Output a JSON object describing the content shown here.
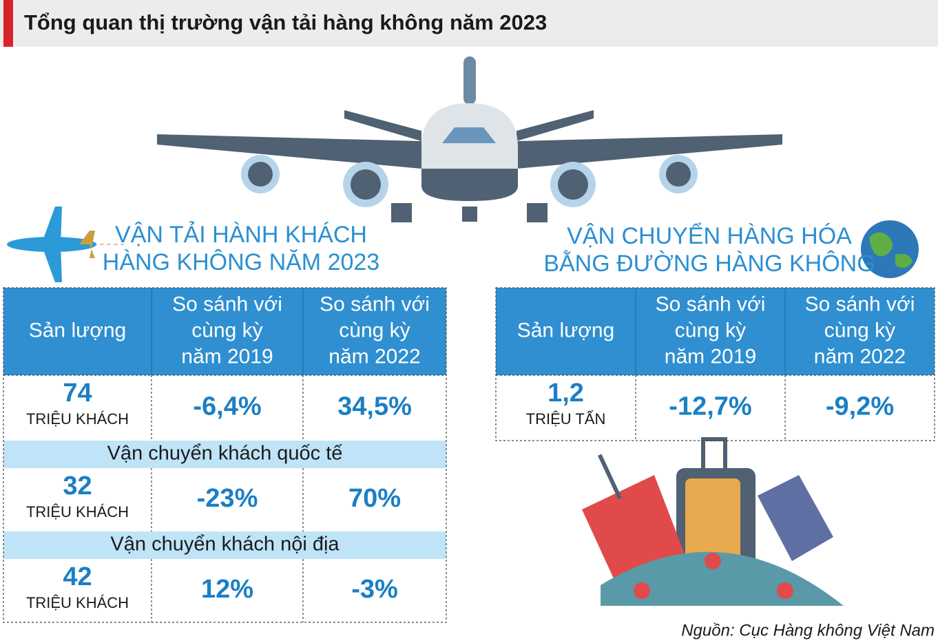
{
  "header": {
    "title": "Tổng quan thị trường vận tải hàng không năm 2023"
  },
  "passenger": {
    "heading": [
      "VẬN TẢI HÀNH KHÁCH",
      "HÀNG KHÔNG NĂM 2023"
    ],
    "columns": [
      [
        "Sản lượng"
      ],
      [
        "So sánh với",
        "cùng kỳ",
        "năm 2019"
      ],
      [
        "So sánh với",
        "cùng kỳ",
        "năm 2022"
      ]
    ],
    "rows": [
      {
        "value": "74",
        "unit": "TRIỆU KHÁCH",
        "vs2019": "-6,4%",
        "vs2022": "34,5%"
      },
      {
        "section": "Vận chuyển khách quốc tế",
        "value": "32",
        "unit": "TRIỆU KHÁCH",
        "vs2019": "-23%",
        "vs2022": "70%"
      },
      {
        "section": "Vận chuyển khách nội địa",
        "value": "42",
        "unit": "TRIỆU KHÁCH",
        "vs2019": "12%",
        "vs2022": "-3%"
      }
    ]
  },
  "cargo": {
    "heading": [
      "VẬN CHUYỂN HÀNG HÓA",
      "BẰNG ĐƯỜNG HÀNG KHÔNG"
    ],
    "columns": [
      [
        "Sản lượng"
      ],
      [
        "So sánh với",
        "cùng kỳ",
        "năm 2019"
      ],
      [
        "So sánh với",
        "cùng kỳ",
        "năm 2022"
      ]
    ],
    "rows": [
      {
        "value": "1,2",
        "unit": "TRIỆU TẤN",
        "vs2019": "-12,7%",
        "vs2022": "-9,2%"
      }
    ]
  },
  "source": "Nguồn: Cục Hàng không Việt Nam"
}
